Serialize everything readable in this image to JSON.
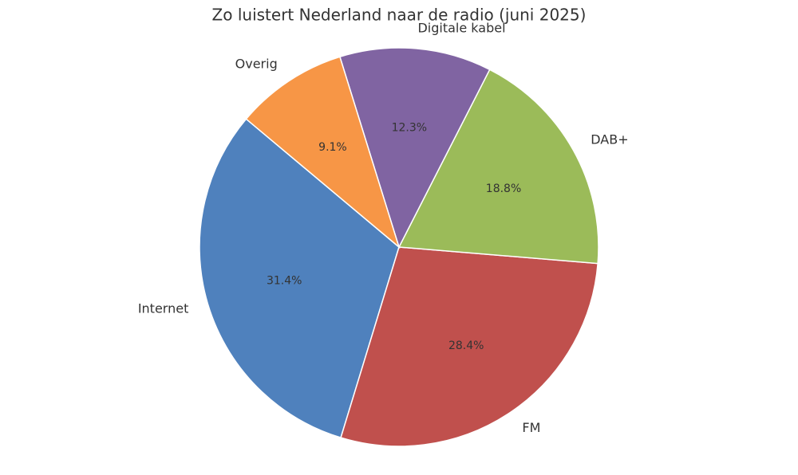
{
  "chart_data": {
    "type": "pie",
    "title": "Zo luistert Nederland naar de radio (juni 2025)",
    "categories": [
      "Internet",
      "FM",
      "DAB+",
      "Digitale kabel",
      "Overig"
    ],
    "values": [
      31.4,
      28.4,
      18.8,
      12.3,
      9.1
    ],
    "value_labels": [
      "31.4%",
      "28.4%",
      "18.8%",
      "12.3%",
      "9.1%"
    ],
    "colors": [
      "#4f81bd",
      "#c0504d",
      "#9bbb59",
      "#8064a2",
      "#f79646"
    ]
  }
}
